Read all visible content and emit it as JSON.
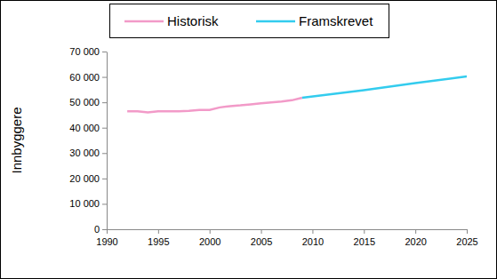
{
  "chart_data": {
    "type": "line",
    "y_label": "Innbyggere",
    "legend": "top",
    "grid": false,
    "xlim": [
      1990,
      2025
    ],
    "xticks": [
      1990,
      1995,
      2000,
      2005,
      2010,
      2015,
      2020,
      2025
    ],
    "ylim": [
      0,
      70000
    ],
    "yticks": [
      0,
      {
        "value": 10000,
        "label": "10 000"
      },
      {
        "value": 20000,
        "label": "20 000"
      },
      {
        "value": 30000,
        "label": "30 000"
      },
      {
        "value": 40000,
        "label": "40 000"
      },
      {
        "value": 50000,
        "label": "50 000"
      },
      {
        "value": 60000,
        "label": "60 000"
      },
      {
        "value": 70000,
        "label": "70 000"
      }
    ],
    "series": [
      {
        "name": "Historisk",
        "color": "#f29ac8",
        "x": [
          1992,
          1993,
          1994,
          1995,
          1996,
          1997,
          1998,
          1999,
          2000,
          2001,
          2002,
          2003,
          2004,
          2005,
          2006,
          2007,
          2008,
          2009
        ],
        "values": [
          46500,
          46500,
          46000,
          46500,
          46500,
          46500,
          46600,
          47000,
          47000,
          48000,
          48500,
          48800,
          49200,
          49600,
          50000,
          50300,
          50800,
          51800
        ]
      },
      {
        "name": "Framskrevet",
        "color": "#33ccee",
        "x": [
          2009,
          2015,
          2020,
          2025
        ],
        "values": [
          51800,
          54800,
          57600,
          60200
        ]
      }
    ]
  }
}
